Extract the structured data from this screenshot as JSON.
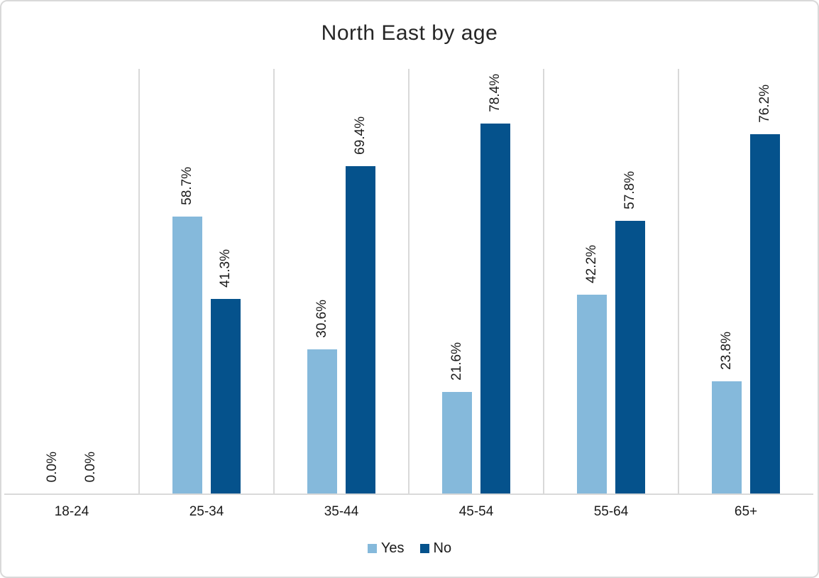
{
  "title": "North East by age",
  "colors": {
    "series_yes": "#85b9db",
    "series_no": "#05528c",
    "gridline": "#d9d9d9",
    "axis_line": "#d9d9d9",
    "frame_border": "#d9d9d9",
    "text": "#1a1a1a",
    "title_text": "#262626"
  },
  "legend": {
    "position": "bottom-center",
    "items": [
      {
        "label": "Yes",
        "color": "#85b9db"
      },
      {
        "label": "No",
        "color": "#05528c"
      }
    ]
  },
  "chart_data": {
    "type": "bar",
    "title": "North East by age",
    "xlabel": "",
    "ylabel": "",
    "ylim": [
      0,
      90
    ],
    "y_axis_visible": false,
    "grid": "vertical-category-boundaries",
    "categories": [
      "18-24",
      "25-34",
      "35-44",
      "45-54",
      "55-64",
      "65+"
    ],
    "series": [
      {
        "name": "Yes",
        "color": "#85b9db",
        "values": [
          0.0,
          58.7,
          30.6,
          21.6,
          42.2,
          23.8
        ]
      },
      {
        "name": "No",
        "color": "#05528c",
        "values": [
          0.0,
          41.3,
          69.4,
          78.4,
          57.8,
          76.2
        ]
      }
    ],
    "data_labels": [
      [
        "0.0%",
        "58.7%",
        "30.6%",
        "21.6%",
        "42.2%",
        "23.8%"
      ],
      [
        "0.0%",
        "41.3%",
        "69.4%",
        "78.4%",
        "57.8%",
        "76.2%"
      ]
    ],
    "data_label_rotation_deg": 90
  }
}
